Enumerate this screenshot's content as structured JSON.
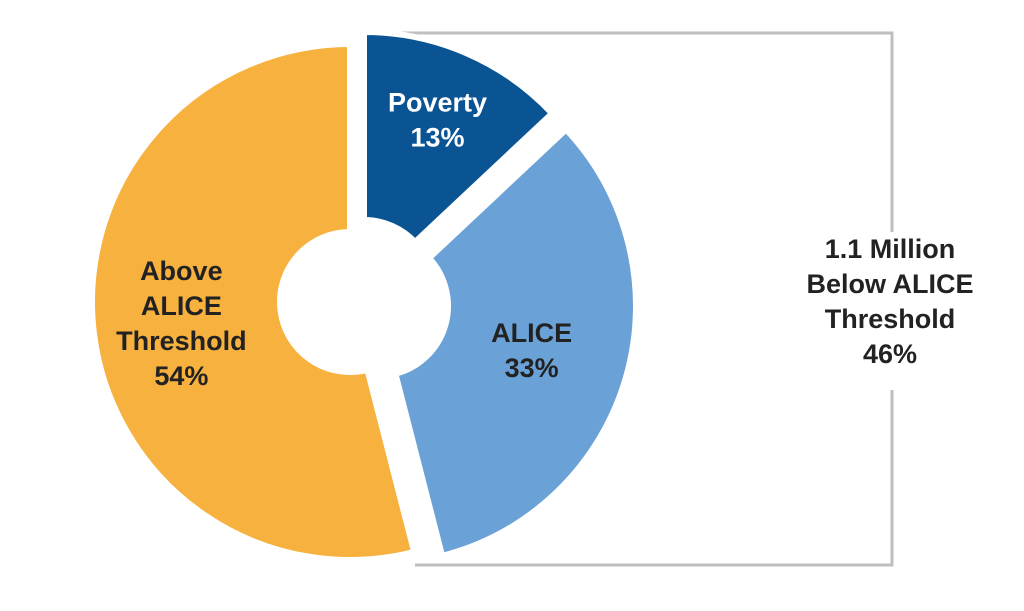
{
  "chart_data": {
    "type": "pie",
    "donut": true,
    "slices": [
      {
        "key": "poverty",
        "label_lines": [
          "Poverty",
          "13%"
        ],
        "value": 13,
        "color": "#0a5494",
        "text_color": "#ffffff"
      },
      {
        "key": "alice",
        "label_lines": [
          "ALICE",
          "33%"
        ],
        "value": 33,
        "color": "#6aa1d6",
        "text_color": "#222222"
      },
      {
        "key": "above",
        "label_lines": [
          "Above",
          "ALICE",
          "Threshold",
          "54%"
        ],
        "value": 54,
        "color": "#f7b13e",
        "text_color": "#222222"
      }
    ],
    "exploded": [
      "poverty",
      "alice"
    ],
    "bracket": {
      "label_lines": [
        "1.1 Million",
        "Below ALICE",
        "Threshold",
        "46%"
      ],
      "color": "#bfbfbf"
    }
  }
}
